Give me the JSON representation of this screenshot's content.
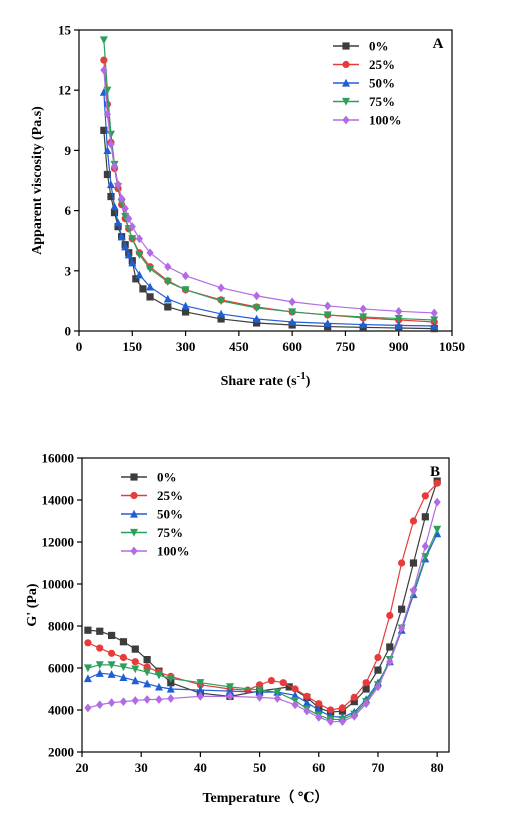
{
  "chart_data": [
    {
      "type": "line",
      "panel_label": "A",
      "xlabel": "Share rate (s",
      "xlabel_sup": "-1",
      "xlabel_end": ")",
      "ylabel": "Apparent viscosity (Pa.s)",
      "xlim": [
        0,
        1050
      ],
      "ylim": [
        0,
        15
      ],
      "xticks": [
        0,
        150,
        300,
        450,
        600,
        750,
        900,
        1050
      ],
      "yticks": [
        0,
        3,
        6,
        9,
        12,
        15
      ],
      "grid": false,
      "legend_position": "top-right",
      "series": [
        {
          "name": "0%",
          "color": "#3d3d3d",
          "marker": "square",
          "x": [
            70,
            80,
            90,
            100,
            110,
            120,
            130,
            140,
            150,
            160,
            180,
            200,
            250,
            300,
            400,
            500,
            600,
            700,
            800,
            900,
            1000
          ],
          "y": [
            10.0,
            7.8,
            6.7,
            5.9,
            5.2,
            4.7,
            4.3,
            3.9,
            3.5,
            2.6,
            2.1,
            1.7,
            1.2,
            0.95,
            0.6,
            0.4,
            0.3,
            0.22,
            0.18,
            0.15,
            0.12
          ]
        },
        {
          "name": "25%",
          "color": "#e83a3a",
          "marker": "circle",
          "x": [
            70,
            80,
            90,
            100,
            110,
            120,
            130,
            140,
            150,
            170,
            200,
            250,
            300,
            400,
            500,
            600,
            700,
            800,
            900,
            1000
          ],
          "y": [
            13.5,
            11.3,
            9.4,
            8.1,
            7.1,
            6.3,
            5.6,
            5.1,
            4.6,
            3.9,
            3.2,
            2.5,
            2.05,
            1.55,
            1.2,
            0.95,
            0.8,
            0.65,
            0.55,
            0.45
          ]
        },
        {
          "name": "50%",
          "color": "#1f5fd4",
          "marker": "triangle-up",
          "x": [
            70,
            80,
            90,
            100,
            110,
            120,
            130,
            140,
            150,
            170,
            200,
            250,
            300,
            400,
            500,
            600,
            700,
            800,
            900,
            1000
          ],
          "y": [
            11.9,
            9.0,
            7.3,
            6.2,
            5.4,
            4.7,
            4.2,
            3.8,
            3.4,
            2.8,
            2.2,
            1.6,
            1.25,
            0.85,
            0.6,
            0.45,
            0.38,
            0.32,
            0.28,
            0.25
          ]
        },
        {
          "name": "75%",
          "color": "#2ca05a",
          "marker": "triangle-down",
          "x": [
            70,
            80,
            90,
            100,
            110,
            120,
            130,
            140,
            150,
            170,
            200,
            250,
            300,
            400,
            500,
            600,
            700,
            800,
            900,
            1000
          ],
          "y": [
            14.5,
            12.0,
            9.8,
            8.3,
            7.2,
            6.4,
            5.7,
            5.1,
            4.6,
            3.8,
            3.1,
            2.45,
            2.05,
            1.5,
            1.15,
            0.95,
            0.8,
            0.7,
            0.62,
            0.55
          ]
        },
        {
          "name": "100%",
          "color": "#b36be3",
          "marker": "diamond",
          "x": [
            70,
            80,
            90,
            100,
            110,
            120,
            130,
            140,
            150,
            170,
            200,
            250,
            300,
            400,
            500,
            600,
            700,
            800,
            900,
            1000
          ],
          "y": [
            13.0,
            10.8,
            9.3,
            8.2,
            7.3,
            6.6,
            6.1,
            5.6,
            5.2,
            4.6,
            3.9,
            3.2,
            2.75,
            2.15,
            1.75,
            1.45,
            1.25,
            1.1,
            0.98,
            0.9
          ]
        }
      ]
    },
    {
      "type": "line",
      "panel_label": "B",
      "xlabel": "Temperature（ ℃）",
      "ylabel": "G' (Pa)",
      "xlim": [
        20,
        82
      ],
      "ylim": [
        2000,
        16000
      ],
      "xticks": [
        20,
        30,
        40,
        50,
        60,
        70,
        80
      ],
      "yticks": [
        2000,
        4000,
        6000,
        8000,
        10000,
        12000,
        14000,
        16000
      ],
      "grid": false,
      "legend_position": "top-left",
      "series": [
        {
          "name": "0%",
          "color": "#3d3d3d",
          "marker": "square",
          "x": [
            21,
            23,
            25,
            27,
            29,
            31,
            33,
            35,
            40,
            45,
            50,
            55,
            58,
            60,
            62,
            64,
            66,
            68,
            70,
            72,
            74,
            76,
            78,
            80
          ],
          "y": [
            7800,
            7750,
            7550,
            7250,
            6900,
            6400,
            5850,
            5300,
            4800,
            4650,
            4900,
            5100,
            4600,
            4100,
            3900,
            3950,
            4400,
            5000,
            5900,
            7000,
            8800,
            11000,
            13200,
            14900
          ]
        },
        {
          "name": "25%",
          "color": "#e83a3a",
          "marker": "circle",
          "x": [
            21,
            23,
            25,
            27,
            29,
            31,
            33,
            35,
            40,
            45,
            48,
            50,
            52,
            54,
            56,
            58,
            60,
            62,
            64,
            66,
            68,
            70,
            72,
            74,
            76,
            78,
            80
          ],
          "y": [
            7200,
            6950,
            6700,
            6500,
            6300,
            6050,
            5800,
            5600,
            5200,
            5000,
            4950,
            5200,
            5400,
            5300,
            5000,
            4650,
            4300,
            4000,
            4100,
            4600,
            5300,
            6500,
            8500,
            11000,
            13000,
            14200,
            14800
          ]
        },
        {
          "name": "50%",
          "color": "#1f5fd4",
          "marker": "triangle-up",
          "x": [
            21,
            23,
            25,
            27,
            29,
            31,
            33,
            35,
            40,
            45,
            50,
            53,
            56,
            58,
            60,
            62,
            64,
            66,
            68,
            70,
            72,
            74,
            76,
            78,
            80
          ],
          "y": [
            5500,
            5750,
            5700,
            5550,
            5400,
            5250,
            5100,
            5000,
            4950,
            4900,
            4850,
            4850,
            4700,
            4350,
            4000,
            3700,
            3650,
            3900,
            4500,
            5300,
            6300,
            7800,
            9500,
            11200,
            12400
          ]
        },
        {
          "name": "75%",
          "color": "#2ca05a",
          "marker": "triangle-down",
          "x": [
            21,
            23,
            25,
            27,
            29,
            31,
            33,
            35,
            40,
            45,
            50,
            53,
            56,
            58,
            60,
            62,
            64,
            66,
            68,
            70,
            72,
            74,
            76,
            78,
            80
          ],
          "y": [
            6000,
            6150,
            6150,
            6050,
            5950,
            5800,
            5650,
            5500,
            5300,
            5100,
            4950,
            4850,
            4450,
            4050,
            3750,
            3550,
            3550,
            3800,
            4400,
            5200,
            6400,
            7900,
            9600,
            11300,
            12600
          ]
        },
        {
          "name": "100%",
          "color": "#b36be3",
          "marker": "diamond",
          "x": [
            21,
            23,
            25,
            27,
            29,
            31,
            33,
            35,
            40,
            45,
            50,
            53,
            56,
            58,
            60,
            62,
            64,
            66,
            68,
            70,
            72,
            74,
            76,
            78,
            80
          ],
          "y": [
            4100,
            4250,
            4350,
            4400,
            4450,
            4500,
            4500,
            4550,
            4650,
            4650,
            4600,
            4550,
            4250,
            3950,
            3650,
            3450,
            3450,
            3700,
            4300,
            5100,
            6300,
            7900,
            9700,
            11800,
            13900
          ]
        }
      ]
    }
  ]
}
